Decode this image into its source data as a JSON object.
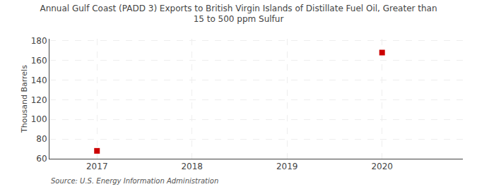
{
  "chart_data": {
    "type": "scatter",
    "title": "Annual Gulf Coast (PADD 3) Exports to British Virgin Islands of Distillate Fuel Oil, Greater than\n15 to 500 ppm Sulfur",
    "ylabel": "Thousand Barrels",
    "annotations": [
      "Source: U.S. Energy Information Administration"
    ],
    "x": [
      2017,
      2020
    ],
    "values": [
      68,
      168
    ],
    "color": "#cc0000",
    "marker": "square",
    "xlim": [
      2016.5,
      2020.85
    ],
    "ylim": [
      60,
      182
    ],
    "xticks": [
      2017,
      2018,
      2019,
      2020
    ],
    "yticks": [
      60,
      80,
      100,
      120,
      140,
      160,
      180
    ],
    "grid": true
  }
}
